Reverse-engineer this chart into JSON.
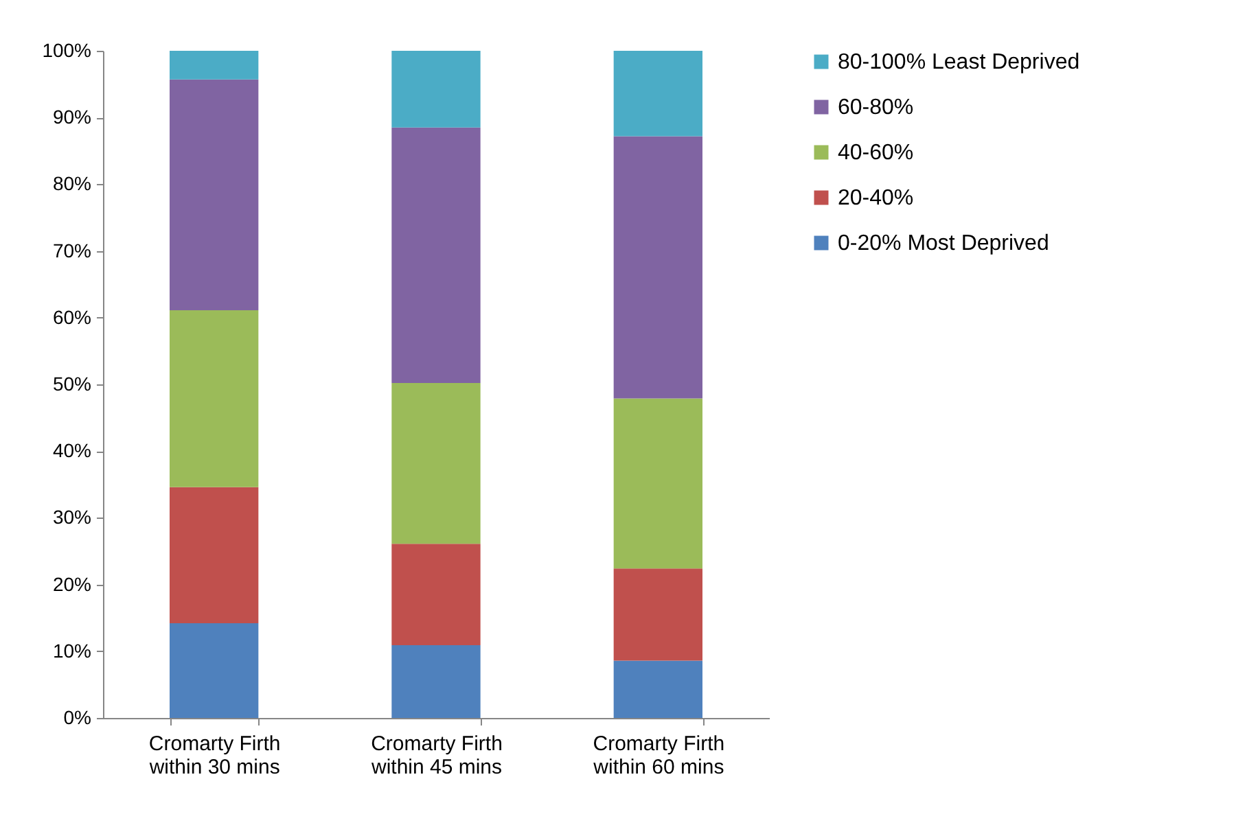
{
  "chart_data": {
    "type": "bar",
    "stacked": true,
    "categories": [
      "Cromarty Firth within 30 mins",
      "Cromarty Firth within 45 mins",
      "Cromarty Firth within 60 mins"
    ],
    "series": [
      {
        "name": "0-20% Most Deprived",
        "color": "#4f81bd",
        "values": [
          14.2,
          10.9,
          8.6
        ]
      },
      {
        "name": "20-40%",
        "color": "#c0504d",
        "values": [
          20.4,
          15.2,
          13.8
        ]
      },
      {
        "name": "40-60%",
        "color": "#9bbb59",
        "values": [
          26.5,
          24.1,
          25.5
        ]
      },
      {
        "name": "60-80%",
        "color": "#8064a2",
        "values": [
          34.6,
          38.3,
          39.3
        ]
      },
      {
        "name": "80-100% Least Deprived",
        "color": "#4bacc6",
        "values": [
          4.3,
          11.5,
          12.8
        ]
      }
    ],
    "ylim": [
      0,
      100
    ],
    "yticks": [
      {
        "value": 0,
        "label": "0%"
      },
      {
        "value": 10,
        "label": "10%"
      },
      {
        "value": 20,
        "label": "20%"
      },
      {
        "value": 30,
        "label": "30%"
      },
      {
        "value": 40,
        "label": "40%"
      },
      {
        "value": 50,
        "label": "50%"
      },
      {
        "value": 60,
        "label": "60%"
      },
      {
        "value": 70,
        "label": "70%"
      },
      {
        "value": 80,
        "label": "80%"
      },
      {
        "value": 90,
        "label": "90%"
      },
      {
        "value": 100,
        "label": "100%"
      }
    ],
    "grid": false,
    "legend": "right"
  }
}
